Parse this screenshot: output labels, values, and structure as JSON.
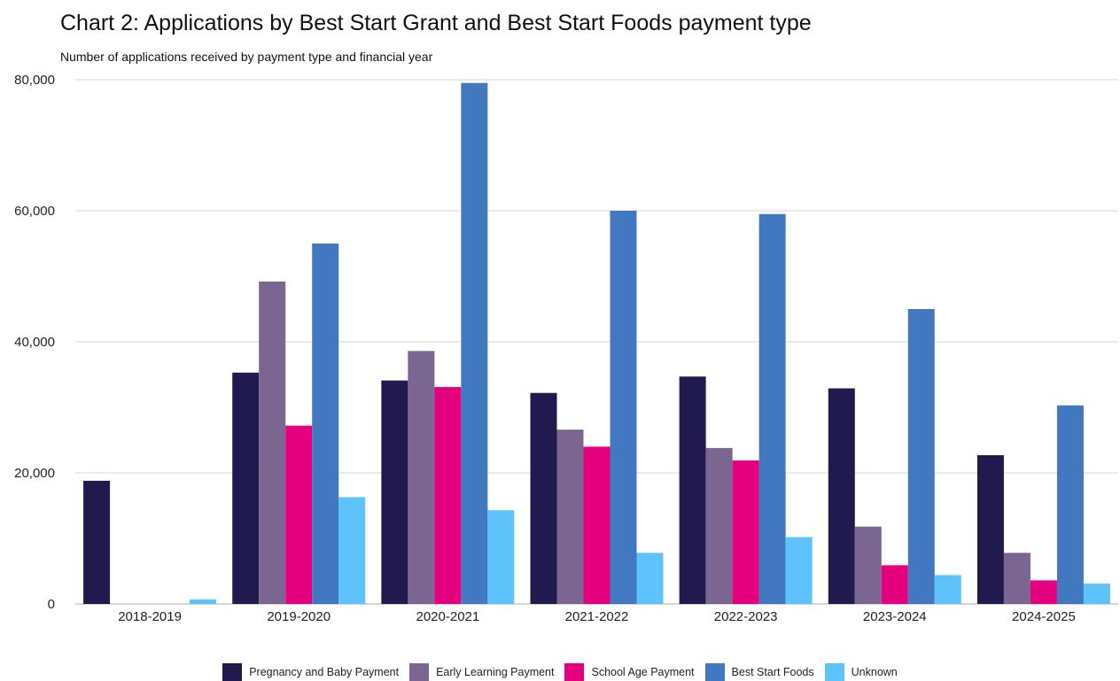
{
  "chart_data": {
    "type": "bar",
    "title": "Chart 2: Applications by Best Start Grant and Best Start Foods payment type",
    "subtitle": "Number of applications received by payment type and financial year",
    "xlabel": "",
    "ylabel": "",
    "ylim": [
      0,
      80000
    ],
    "yticks": [
      0,
      20000,
      40000,
      60000,
      80000
    ],
    "ytick_labels": [
      "0",
      "20,000",
      "40,000",
      "60,000",
      "80,000"
    ],
    "grid": true,
    "legend_position": "bottom",
    "categories": [
      "2018-2019",
      "2019-2020",
      "2020-2021",
      "2021-2022",
      "2022-2023",
      "2023-2024",
      "2024-2025"
    ],
    "series": [
      {
        "name": "Pregnancy and Baby Payment",
        "color": "#211a4e",
        "values": [
          18800,
          35300,
          34100,
          32200,
          34700,
          32900,
          22700
        ]
      },
      {
        "name": "Early Learning Payment",
        "color": "#7b6691",
        "values": [
          0,
          49200,
          38600,
          26600,
          23800,
          11800,
          7800
        ]
      },
      {
        "name": "School Age Payment",
        "color": "#e5007e",
        "values": [
          0,
          27200,
          33100,
          24000,
          21900,
          5900,
          3600
        ]
      },
      {
        "name": "Best Start Foods",
        "color": "#4178bf",
        "values": [
          0,
          55000,
          79500,
          60000,
          59500,
          45000,
          30300
        ]
      },
      {
        "name": "Unknown",
        "color": "#5fc3fb",
        "values": [
          700,
          16300,
          14300,
          7800,
          10200,
          4400,
          3100
        ]
      }
    ]
  }
}
